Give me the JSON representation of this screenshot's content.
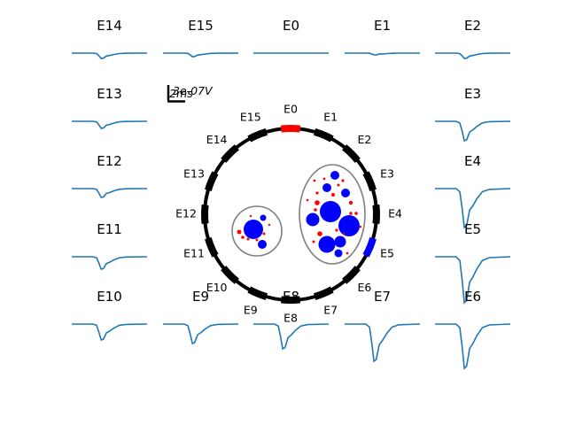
{
  "scale_bar": {
    "amplitude_label": "3e-07V",
    "time_label": "2ms"
  },
  "colors": {
    "trace": "#1f77b4",
    "ring": "#000000",
    "ellipse": "#808080",
    "active_red": "#ff0000",
    "active_blue": "#0000ff"
  },
  "electrodes": [
    {
      "name": "E0",
      "depth": 0
    },
    {
      "name": "E1",
      "depth": 0.05
    },
    {
      "name": "E2",
      "depth": 0.15
    },
    {
      "name": "E3",
      "depth": 0.55
    },
    {
      "name": "E4",
      "depth": 1.1
    },
    {
      "name": "E5",
      "depth": 1.3
    },
    {
      "name": "E6",
      "depth": 1.25
    },
    {
      "name": "E7",
      "depth": 1.05
    },
    {
      "name": "E8",
      "depth": 0.7
    },
    {
      "name": "E9",
      "depth": 0.55
    },
    {
      "name": "E10",
      "depth": 0.45
    },
    {
      "name": "E11",
      "depth": 0.35
    },
    {
      "name": "E12",
      "depth": 0.25
    },
    {
      "name": "E13",
      "depth": 0.2
    },
    {
      "name": "E14",
      "depth": 0.15
    },
    {
      "name": "E15",
      "depth": 0.1
    }
  ],
  "ring_highlight": {
    "E0": "red",
    "E5": "blue"
  }
}
